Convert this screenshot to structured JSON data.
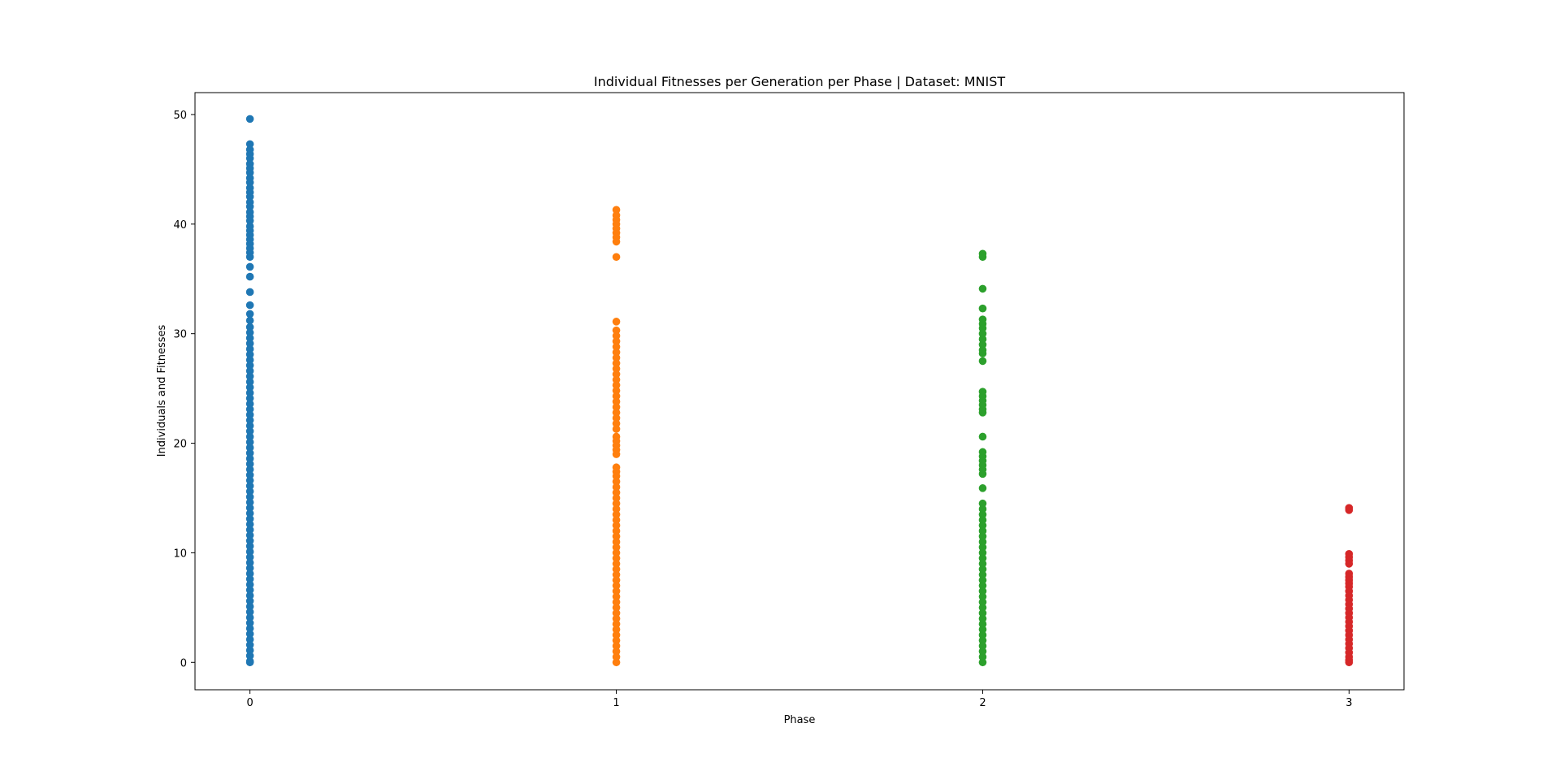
{
  "chart_data": {
    "type": "scatter",
    "title": "Individual Fitnesses per Generation per Phase | Dataset: MNIST",
    "xlabel": "Phase",
    "ylabel": "Individuals and Fitnesses",
    "xlim": [
      -0.15,
      3.15
    ],
    "ylim": [
      -2.5,
      52.0
    ],
    "x_ticks": [
      0,
      1,
      2,
      3
    ],
    "x_tick_labels": [
      "0",
      "1",
      "2",
      "3"
    ],
    "y_ticks": [
      0,
      10,
      20,
      30,
      40,
      50
    ],
    "y_tick_labels": [
      "0",
      "10",
      "20",
      "30",
      "40",
      "50"
    ],
    "grid": false,
    "legend": false,
    "series": [
      {
        "x": 0,
        "color": "#1f77b4",
        "values": [
          49.6,
          47.3,
          46.8,
          46.4,
          46.0,
          45.5,
          45.1,
          44.7,
          44.2,
          43.8,
          43.3,
          42.9,
          42.5,
          42.0,
          41.6,
          41.1,
          40.7,
          40.3,
          39.8,
          39.4,
          39.0,
          38.6,
          38.2,
          37.8,
          37.4,
          37.0,
          36.1,
          35.2,
          33.8,
          32.6,
          31.8,
          31.2,
          30.6,
          30.1,
          29.6,
          29.1,
          28.6,
          28.1,
          27.6,
          27.1,
          26.6,
          26.1,
          25.6,
          25.1,
          24.6,
          24.1,
          23.6,
          23.1,
          22.6,
          22.1,
          21.6,
          21.1,
          20.6,
          20.1,
          19.6,
          19.1,
          18.6,
          18.1,
          17.6,
          17.1,
          16.6,
          16.1,
          15.6,
          15.1,
          14.6,
          14.1,
          13.6,
          13.1,
          12.6,
          12.1,
          11.6,
          11.1,
          10.6,
          10.1,
          9.6,
          9.1,
          8.6,
          8.1,
          7.6,
          7.1,
          6.6,
          6.1,
          5.6,
          5.1,
          4.6,
          4.1,
          3.6,
          3.1,
          2.6,
          2.1,
          1.6,
          1.1,
          0.6,
          0.1,
          0.0
        ]
      },
      {
        "x": 1,
        "color": "#ff7f0e",
        "values": [
          41.3,
          40.8,
          40.4,
          40.0,
          39.6,
          39.2,
          38.8,
          38.4,
          37.0,
          31.1,
          30.3,
          29.8,
          29.3,
          28.8,
          28.3,
          27.8,
          27.3,
          26.8,
          26.3,
          25.8,
          25.3,
          24.8,
          24.3,
          23.8,
          23.3,
          22.8,
          22.3,
          21.8,
          21.3,
          20.6,
          20.2,
          19.8,
          19.4,
          19.0,
          17.8,
          17.4,
          17.0,
          16.5,
          16.0,
          15.5,
          15.0,
          14.5,
          14.0,
          13.5,
          13.0,
          12.5,
          12.0,
          11.5,
          11.0,
          10.5,
          10.0,
          9.5,
          9.0,
          8.5,
          8.0,
          7.5,
          7.0,
          6.5,
          6.0,
          5.5,
          5.0,
          4.5,
          4.0,
          3.5,
          3.0,
          2.5,
          2.0,
          1.5,
          1.0,
          0.5,
          0.0
        ]
      },
      {
        "x": 2,
        "color": "#2ca02c",
        "values": [
          37.3,
          37.0,
          34.1,
          32.3,
          31.3,
          30.9,
          30.5,
          30.0,
          29.5,
          29.0,
          28.5,
          28.2,
          27.5,
          24.7,
          24.3,
          23.9,
          23.5,
          23.1,
          22.8,
          20.6,
          19.2,
          18.8,
          18.4,
          18.0,
          17.6,
          17.2,
          15.9,
          14.5,
          14.0,
          13.5,
          13.0,
          12.5,
          12.0,
          11.5,
          11.0,
          10.5,
          10.0,
          9.5,
          9.0,
          8.5,
          8.0,
          7.5,
          7.0,
          6.5,
          6.0,
          5.5,
          5.0,
          4.5,
          4.0,
          3.5,
          3.0,
          2.5,
          2.0,
          1.5,
          1.0,
          0.5,
          0.0
        ]
      },
      {
        "x": 3,
        "color": "#d62728",
        "values": [
          14.1,
          13.9,
          9.9,
          9.6,
          9.3,
          9.0,
          8.1,
          7.8,
          7.5,
          7.2,
          6.9,
          6.5,
          6.1,
          5.7,
          5.3,
          4.9,
          4.5,
          4.1,
          3.7,
          3.3,
          2.9,
          2.5,
          2.1,
          1.7,
          1.3,
          0.9,
          0.5,
          0.2,
          0.0
        ]
      }
    ]
  }
}
